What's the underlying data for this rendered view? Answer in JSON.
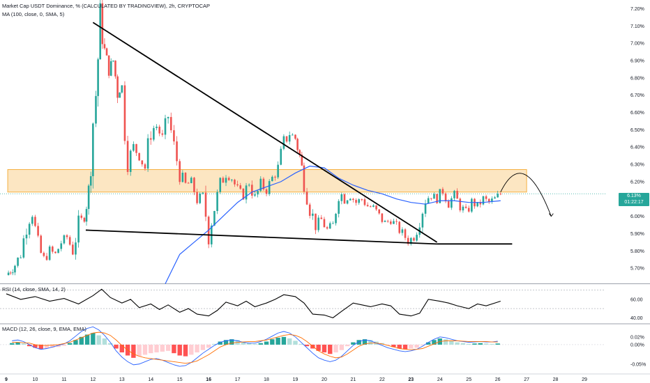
{
  "header": {
    "title": "Market Cap USDT Dominance, % (CALCULATED BY TRADINGVIEW), 2h, CRYPTOCAP",
    "ma_label": "MA (100, close, 0, SMA, 5)",
    "rsi_label": "RSI (14, close, SMA, 14, 2)",
    "macd_label": "MACD (12, 26, close, 9, EMA, EMA)"
  },
  "price_badge": {
    "value": "6.13%",
    "countdown": "01:22:17",
    "color": "#26a69a"
  },
  "colors": {
    "up": "#26a69a",
    "down": "#ef5350",
    "ma": "#2962ff",
    "zone": "#f5b041",
    "macd_line": "#2962ff",
    "signal_line": "#ff6d00"
  },
  "chart_data": [
    {
      "type": "candlestick",
      "title": "Market Cap USDT Dominance, % (CALCULATED BY TRADINGVIEW), 2h, CRYPTOCAP",
      "x_tick_labels": [
        "9",
        "10",
        "11",
        "12",
        "13",
        "14",
        "15",
        "16",
        "17",
        "18",
        "19",
        "20",
        "21",
        "22",
        "23",
        "24",
        "25",
        "26",
        "27",
        "28",
        "29"
      ],
      "y_tick_labels": [
        "5.70%",
        "5.80%",
        "5.90%",
        "6.00%",
        "6.10%",
        "6.20%",
        "6.30%",
        "6.40%",
        "6.50%",
        "6.60%",
        "6.70%",
        "6.80%",
        "6.90%",
        "7.00%",
        "7.10%",
        "7.20%"
      ],
      "ylim": [
        5.62,
        7.25
      ],
      "close_path": [
        [
          9.0,
          5.66
        ],
        [
          9.3,
          5.72
        ],
        [
          9.5,
          5.78
        ],
        [
          9.7,
          5.95
        ],
        [
          9.9,
          6.02
        ],
        [
          10.1,
          5.82
        ],
        [
          10.3,
          5.75
        ],
        [
          10.5,
          5.8
        ],
        [
          10.7,
          5.78
        ],
        [
          10.9,
          5.85
        ],
        [
          11.1,
          5.88
        ],
        [
          11.3,
          5.8
        ],
        [
          11.5,
          5.95
        ],
        [
          11.7,
          6.0
        ],
        [
          11.85,
          6.15
        ],
        [
          12.0,
          6.55
        ],
        [
          12.1,
          6.7
        ],
        [
          12.25,
          7.13
        ],
        [
          12.4,
          6.95
        ],
        [
          12.55,
          6.85
        ],
        [
          12.7,
          6.9
        ],
        [
          12.85,
          6.72
        ],
        [
          13.0,
          6.75
        ],
        [
          13.1,
          6.5
        ],
        [
          13.2,
          6.32
        ],
        [
          13.4,
          6.4
        ],
        [
          13.6,
          6.35
        ],
        [
          13.8,
          6.28
        ],
        [
          14.0,
          6.5
        ],
        [
          14.2,
          6.52
        ],
        [
          14.4,
          6.45
        ],
        [
          14.6,
          6.58
        ],
        [
          14.8,
          6.4
        ],
        [
          15.0,
          6.25
        ],
        [
          15.2,
          6.18
        ],
        [
          15.4,
          6.2
        ],
        [
          15.6,
          6.1
        ],
        [
          15.8,
          6.12
        ],
        [
          16.0,
          5.9
        ],
        [
          16.2,
          6.05
        ],
        [
          16.4,
          6.18
        ],
        [
          16.6,
          6.25
        ],
        [
          16.8,
          6.22
        ],
        [
          17.0,
          6.15
        ],
        [
          17.2,
          6.12
        ],
        [
          17.4,
          6.2
        ],
        [
          17.6,
          6.1
        ],
        [
          17.8,
          6.18
        ],
        [
          18.0,
          6.15
        ],
        [
          18.2,
          6.22
        ],
        [
          18.4,
          6.28
        ],
        [
          18.6,
          6.42
        ],
        [
          18.8,
          6.48
        ],
        [
          19.0,
          6.45
        ],
        [
          19.15,
          6.35
        ],
        [
          19.3,
          6.2
        ],
        [
          19.5,
          6.05
        ],
        [
          19.7,
          5.95
        ],
        [
          19.9,
          5.98
        ],
        [
          20.1,
          5.92
        ],
        [
          20.3,
          5.95
        ],
        [
          20.5,
          6.15
        ],
        [
          20.7,
          6.1
        ],
        [
          20.9,
          6.12
        ],
        [
          21.1,
          6.08
        ],
        [
          21.3,
          6.1
        ],
        [
          21.5,
          6.06
        ],
        [
          21.7,
          6.05
        ],
        [
          21.9,
          6.0
        ],
        [
          22.1,
          5.96
        ],
        [
          22.3,
          5.98
        ],
        [
          22.5,
          5.94
        ],
        [
          22.7,
          5.9
        ],
        [
          22.9,
          5.86
        ],
        [
          23.1,
          5.88
        ],
        [
          23.3,
          5.98
        ],
        [
          23.5,
          6.1
        ],
        [
          23.7,
          6.12
        ],
        [
          23.9,
          6.1
        ],
        [
          24.1,
          6.15
        ],
        [
          24.3,
          6.08
        ],
        [
          24.5,
          6.12
        ],
        [
          24.7,
          6.06
        ],
        [
          24.9,
          6.02
        ],
        [
          25.1,
          6.08
        ],
        [
          25.3,
          6.06
        ],
        [
          25.5,
          6.1
        ],
        [
          25.7,
          6.08
        ],
        [
          25.9,
          6.1
        ],
        [
          26.1,
          6.13
        ]
      ],
      "moving_average": [
        [
          14.5,
          5.61
        ],
        [
          15.0,
          5.78
        ],
        [
          15.5,
          5.85
        ],
        [
          16.0,
          5.92
        ],
        [
          16.5,
          6.0
        ],
        [
          17.0,
          6.08
        ],
        [
          17.5,
          6.14
        ],
        [
          18.0,
          6.17
        ],
        [
          18.5,
          6.2
        ],
        [
          19.0,
          6.25
        ],
        [
          19.5,
          6.29
        ],
        [
          20.0,
          6.28
        ],
        [
          20.5,
          6.22
        ],
        [
          21.0,
          6.18
        ],
        [
          21.5,
          6.15
        ],
        [
          22.0,
          6.13
        ],
        [
          22.5,
          6.1
        ],
        [
          23.0,
          6.08
        ],
        [
          23.5,
          6.07
        ],
        [
          24.0,
          6.09
        ],
        [
          24.5,
          6.09
        ],
        [
          25.0,
          6.08
        ],
        [
          25.5,
          6.08
        ],
        [
          26.1,
          6.09
        ]
      ],
      "zone": {
        "x_range": [
          9.05,
          27.0
        ],
        "y_range": [
          6.14,
          6.27
        ]
      },
      "trendlines": [
        {
          "name": "descending resistance",
          "from": [
            12.0,
            7.12
          ],
          "to": [
            23.9,
            5.85
          ]
        },
        {
          "name": "support",
          "from": [
            11.75,
            5.92
          ],
          "to": [
            23.9,
            5.84
          ]
        },
        {
          "name": "support extension",
          "from": [
            23.9,
            5.84
          ],
          "to": [
            26.5,
            5.84
          ]
        }
      ],
      "projection": {
        "from": [
          26.1,
          6.14
        ],
        "peak": [
          26.9,
          6.26
        ],
        "to": [
          27.85,
          6.0
        ]
      },
      "last_value": 6.13
    },
    {
      "type": "line",
      "title": "RSI (14, close, SMA, 14, 2)",
      "y_tick_labels": [
        "60.00",
        "40.00"
      ],
      "ylim": [
        35,
        75
      ],
      "levels": [
        70,
        50,
        30
      ],
      "x": [
        9.0,
        9.5,
        10.0,
        10.5,
        11.0,
        11.5,
        12.0,
        12.3,
        12.6,
        13.0,
        13.3,
        13.6,
        14.0,
        14.3,
        14.6,
        15.0,
        15.3,
        15.6,
        16.0,
        16.3,
        16.6,
        17.0,
        17.3,
        17.6,
        18.0,
        18.3,
        18.6,
        19.0,
        19.3,
        19.6,
        20.0,
        20.3,
        20.6,
        21.0,
        21.3,
        21.6,
        22.0,
        22.3,
        22.6,
        23.0,
        23.3,
        23.6,
        24.0,
        24.3,
        24.6,
        25.0,
        25.3,
        25.6,
        26.1
      ],
      "values": [
        66,
        60,
        63,
        58,
        61,
        55,
        64,
        71,
        62,
        56,
        60,
        51,
        55,
        49,
        54,
        46,
        50,
        44,
        42,
        48,
        57,
        53,
        58,
        52,
        56,
        60,
        65,
        63,
        56,
        44,
        43,
        40,
        47,
        56,
        54,
        52,
        55,
        53,
        44,
        42,
        45,
        60,
        58,
        56,
        53,
        50,
        55,
        53,
        58
      ]
    },
    {
      "type": "bar",
      "title": "MACD (12, 26, close, 9, EMA, EMA)",
      "y_tick_labels": [
        "0.02%",
        "0.00%",
        "-0.05%"
      ],
      "ylim": [
        -0.072,
        0.052
      ],
      "x": [
        9.2,
        9.4,
        9.6,
        9.8,
        10.0,
        10.2,
        10.4,
        10.6,
        10.8,
        11.0,
        11.2,
        11.4,
        11.6,
        11.8,
        12.0,
        12.2,
        12.4,
        12.6,
        12.8,
        13.0,
        13.2,
        13.4,
        13.6,
        13.8,
        14.0,
        14.2,
        14.4,
        14.6,
        14.8,
        15.0,
        15.2,
        15.4,
        15.6,
        15.8,
        16.0,
        16.2,
        16.4,
        16.6,
        16.8,
        17.0,
        17.2,
        17.4,
        17.6,
        17.8,
        18.0,
        18.2,
        18.4,
        18.6,
        18.8,
        19.0,
        19.2,
        19.4,
        19.6,
        19.8,
        20.0,
        20.2,
        20.4,
        20.6,
        20.8,
        21.0,
        21.2,
        21.4,
        21.6,
        21.8,
        22.0,
        22.2,
        22.4,
        22.6,
        22.8,
        23.0,
        23.2,
        23.4,
        23.6,
        23.8,
        24.0,
        24.2,
        24.4,
        24.6,
        24.8,
        25.0,
        25.2,
        25.4,
        25.6,
        25.8,
        26.0
      ],
      "histogram": [
        0.004,
        0.006,
        0.003,
        -0.004,
        -0.008,
        -0.012,
        -0.01,
        -0.008,
        -0.006,
        -0.003,
        0.004,
        0.012,
        0.02,
        0.026,
        0.03,
        0.024,
        0.016,
        0.004,
        -0.01,
        -0.02,
        -0.028,
        -0.034,
        -0.03,
        -0.026,
        -0.022,
        -0.02,
        -0.018,
        -0.016,
        -0.022,
        -0.028,
        -0.03,
        -0.026,
        -0.02,
        -0.014,
        -0.008,
        0.002,
        0.008,
        0.012,
        0.014,
        0.012,
        0.008,
        0.004,
        0.002,
        0.004,
        0.008,
        0.014,
        0.018,
        0.02,
        0.016,
        0.01,
        0.002,
        -0.004,
        -0.01,
        -0.016,
        -0.02,
        -0.024,
        -0.02,
        -0.014,
        -0.004,
        0.006,
        0.012,
        0.014,
        0.012,
        0.008,
        0.004,
        -0.002,
        -0.006,
        -0.01,
        -0.012,
        -0.01,
        -0.008,
        -0.002,
        0.006,
        0.012,
        0.016,
        0.014,
        0.01,
        0.006,
        0.004,
        0.002,
        0.003,
        0.004,
        0.003,
        0.002,
        0.003
      ],
      "macd_line": [
        0.01,
        0.012,
        0.008,
        0.0,
        -0.008,
        -0.012,
        -0.01,
        -0.006,
        -0.002,
        0.002,
        0.01,
        0.022,
        0.034,
        0.042,
        0.046,
        0.038,
        0.024,
        0.006,
        -0.016,
        -0.032,
        -0.044,
        -0.052,
        -0.05,
        -0.044,
        -0.038,
        -0.036,
        -0.04,
        -0.046,
        -0.052,
        -0.056,
        -0.054,
        -0.046,
        -0.034,
        -0.022,
        -0.012,
        -0.002,
        0.006,
        0.01,
        0.012,
        0.01,
        0.006,
        0.004,
        0.004,
        0.008,
        0.014,
        0.022,
        0.03,
        0.034,
        0.03,
        0.02,
        0.006,
        -0.008,
        -0.022,
        -0.034,
        -0.04,
        -0.044,
        -0.04,
        -0.03,
        -0.016,
        -0.002,
        0.008,
        0.012,
        0.01,
        0.004,
        -0.002,
        -0.008,
        -0.012,
        -0.016,
        -0.018,
        -0.016,
        -0.012,
        -0.004,
        0.006,
        0.014,
        0.02,
        0.018,
        0.014,
        0.01,
        0.008,
        0.006,
        0.007,
        0.008,
        0.007,
        0.007,
        0.009
      ],
      "signal_line": [
        0.006,
        0.006,
        0.005,
        0.004,
        0.0,
        -0.002,
        -0.002,
        -0.001,
        0.0,
        0.003,
        0.006,
        0.012,
        0.018,
        0.024,
        0.03,
        0.032,
        0.03,
        0.024,
        0.012,
        -0.002,
        -0.014,
        -0.024,
        -0.03,
        -0.034,
        -0.036,
        -0.038,
        -0.04,
        -0.042,
        -0.044,
        -0.046,
        -0.048,
        -0.046,
        -0.042,
        -0.034,
        -0.026,
        -0.016,
        -0.006,
        0.0,
        0.004,
        0.006,
        0.007,
        0.008,
        0.008,
        0.01,
        0.012,
        0.016,
        0.02,
        0.024,
        0.026,
        0.024,
        0.018,
        0.008,
        -0.004,
        -0.016,
        -0.024,
        -0.03,
        -0.034,
        -0.032,
        -0.024,
        -0.014,
        -0.004,
        0.002,
        0.004,
        0.004,
        0.002,
        -0.002,
        -0.006,
        -0.01,
        -0.012,
        -0.013,
        -0.012,
        -0.01,
        -0.004,
        0.002,
        0.008,
        0.01,
        0.01,
        0.01,
        0.009,
        0.008,
        0.008,
        0.008,
        0.008,
        0.007,
        0.007
      ]
    }
  ]
}
